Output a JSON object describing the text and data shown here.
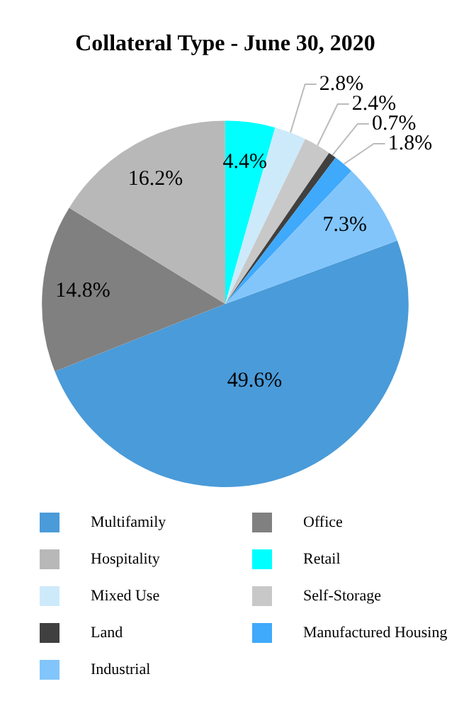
{
  "chart_data": {
    "type": "pie",
    "title": "Collateral Type - June 30, 2020",
    "categories": [
      "Multifamily",
      "Office",
      "Hospitality",
      "Retail",
      "Mixed Use",
      "Self-Storage",
      "Land",
      "Manufactured Housing",
      "Industrial"
    ],
    "values": [
      49.6,
      14.8,
      16.2,
      4.4,
      2.8,
      2.4,
      0.7,
      1.8,
      7.3
    ],
    "value_labels": [
      "49.6%",
      "14.8%",
      "16.2%",
      "4.4%",
      "2.8%",
      "2.4%",
      "0.7%",
      "1.8%",
      "7.3%"
    ],
    "colors": [
      "#4a9bd9",
      "#808080",
      "#b8b8b8",
      "#00ffff",
      "#cdeafb",
      "#c8c8c8",
      "#404040",
      "#3fa9fb",
      "#82c5fb"
    ],
    "legend": "bottom"
  }
}
